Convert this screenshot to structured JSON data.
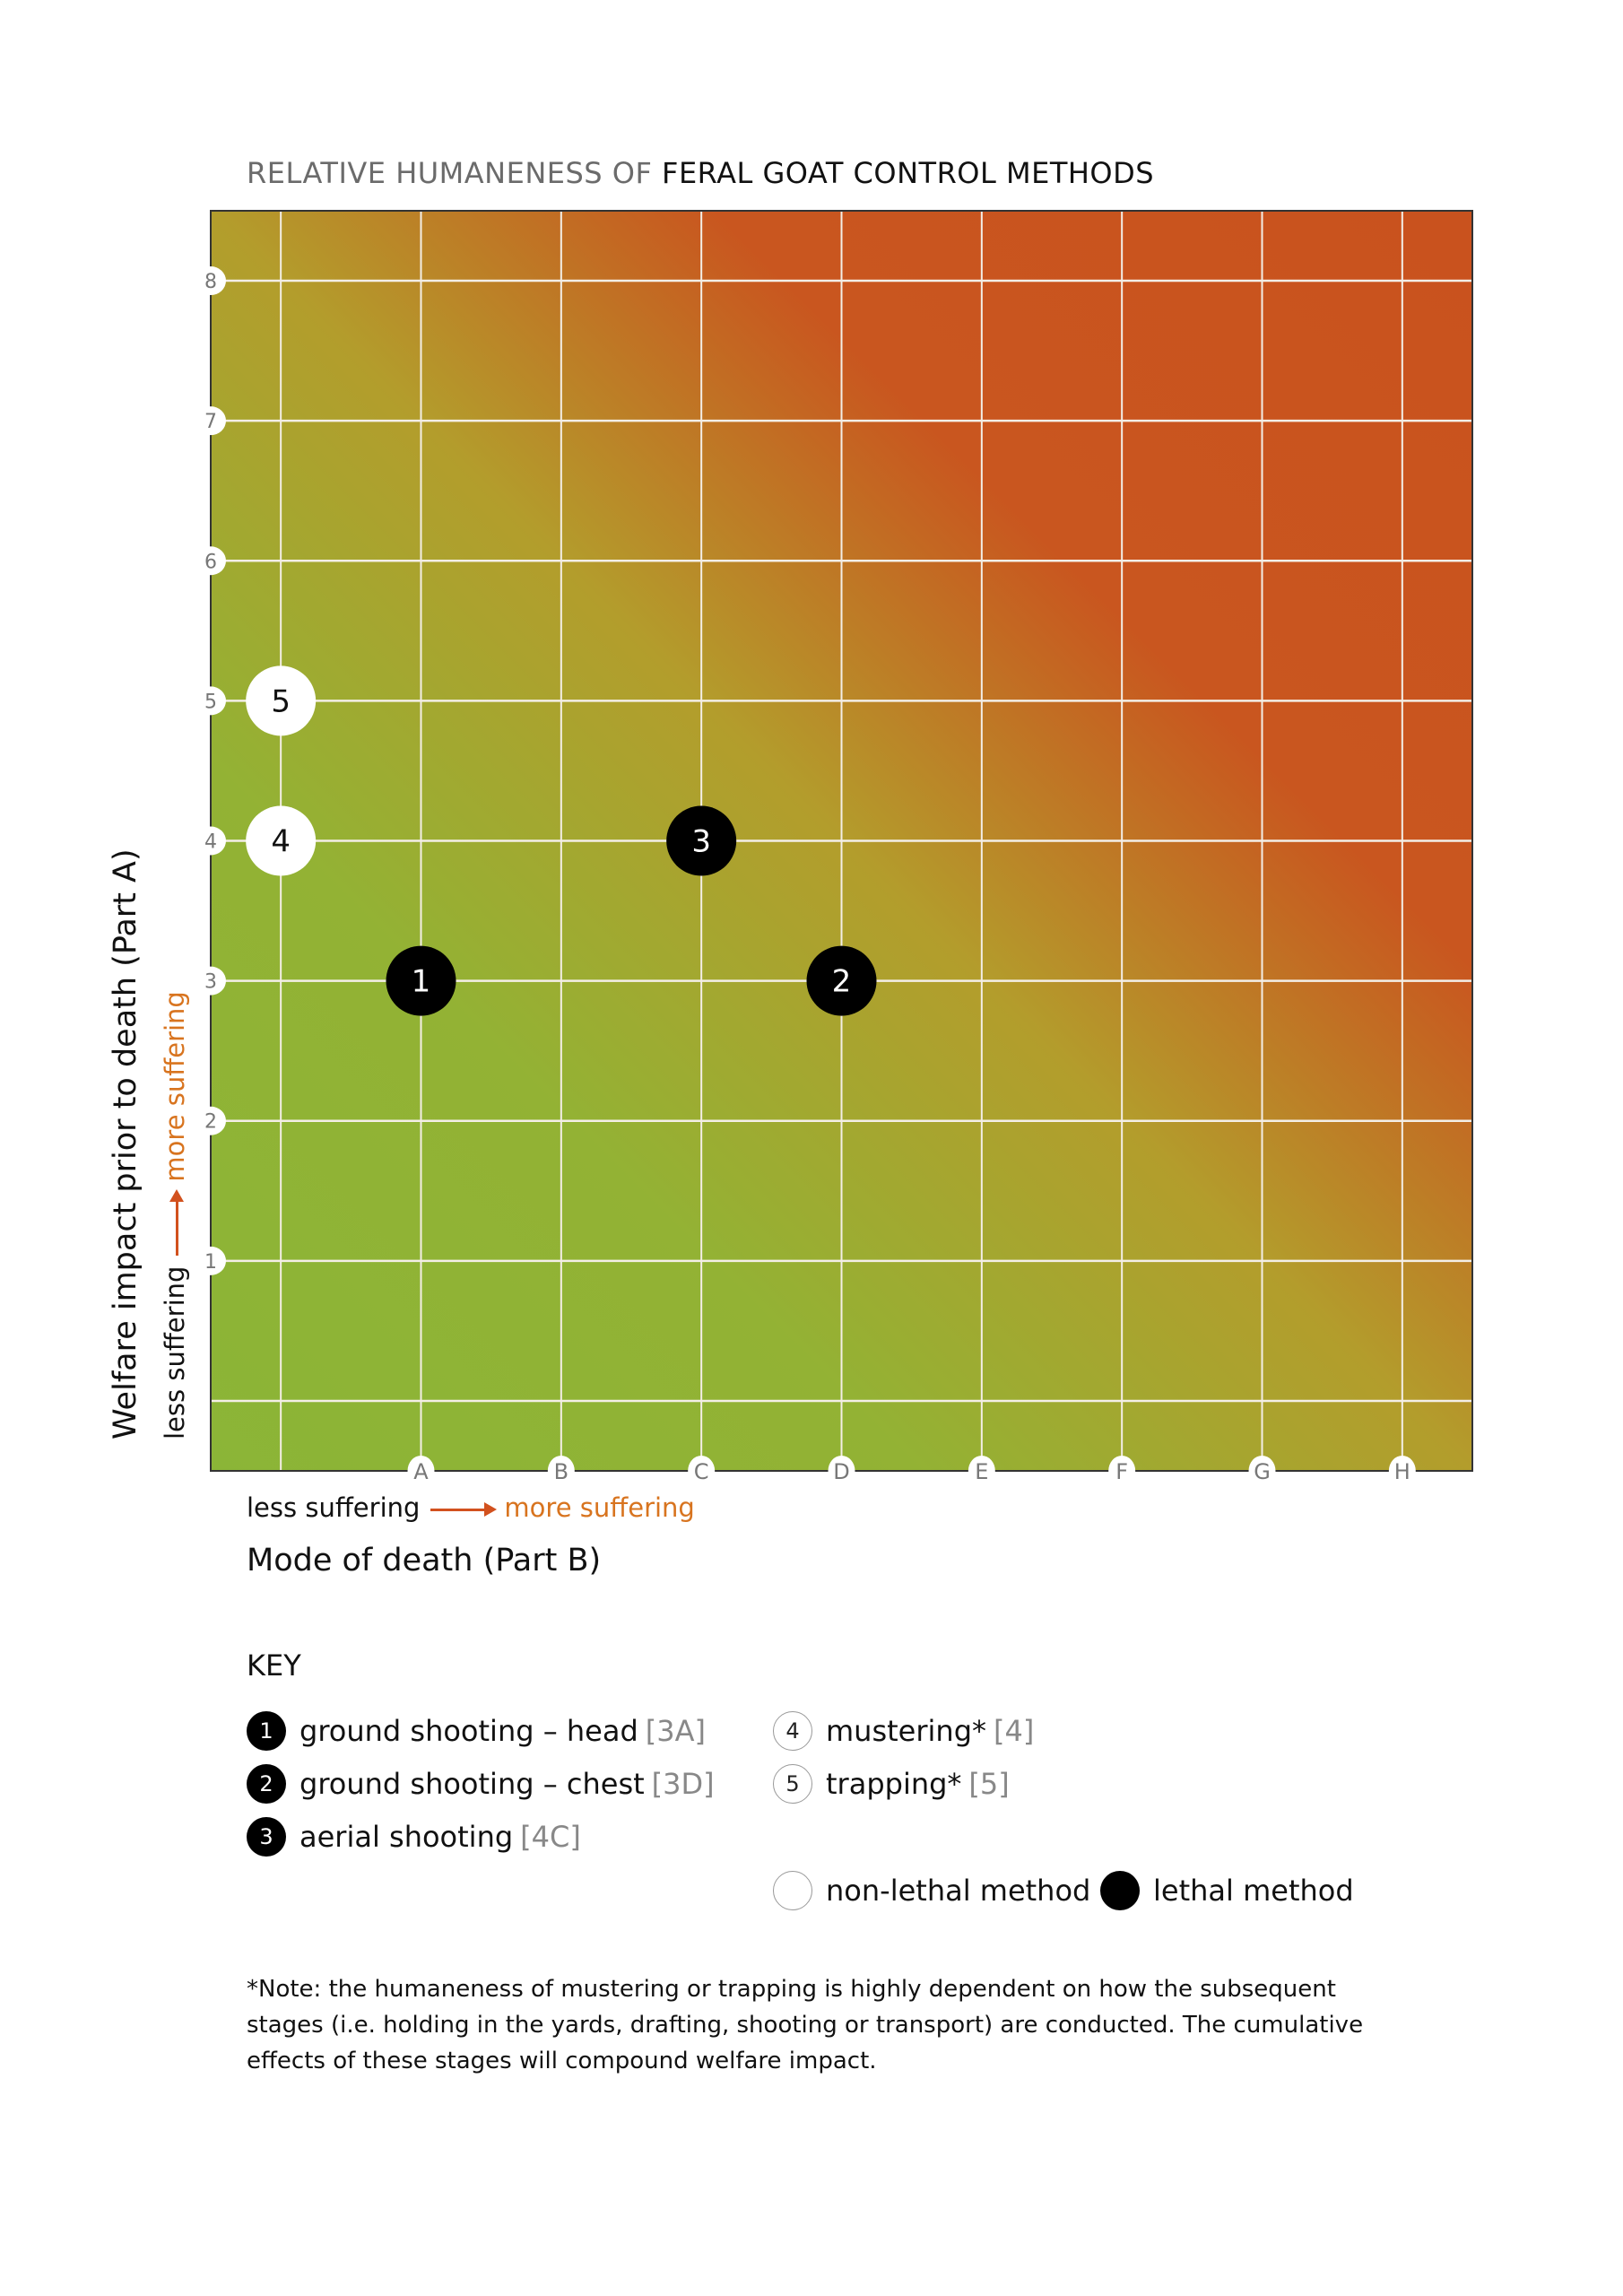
{
  "chart_data": {
    "type": "scatter",
    "title_prefix": "RELATIVE HUMANENESS OF ",
    "title_emphasis": "FERAL GOAT CONTROL METHODS",
    "xlabel": "Mode of death (Part B)",
    "ylabel": "Welfare impact prior to death (Part A)",
    "x_scale_labels": {
      "less": "less suffering",
      "more": "more suffering"
    },
    "y_scale_labels": {
      "less": "less suffering",
      "more": "more suffering"
    },
    "x_ticks": [
      "",
      "A",
      "B",
      "C",
      "D",
      "E",
      "F",
      "G",
      "H"
    ],
    "y_ticks": [
      0,
      1,
      2,
      3,
      4,
      5,
      6,
      7,
      8
    ],
    "y_tick_labels": [
      "",
      "1",
      "2",
      "3",
      "4",
      "5",
      "6",
      "7",
      "8"
    ],
    "xlim": [
      -0.5,
      8.5
    ],
    "ylim": [
      -0.5,
      8.5
    ],
    "grid": true,
    "background": "diagonal gradient green (bottom-left) to orange-red (top-right)",
    "colors": {
      "green": "#8bb537",
      "yellow": "#b3a02c",
      "red": "#c9521e",
      "grid": "#f3eee6",
      "lethal": "#000000",
      "non_lethal": "#ffffff",
      "accent": "#d8741f"
    },
    "points": [
      {
        "label": "1",
        "x": "A",
        "y": 3,
        "lethal": true
      },
      {
        "label": "2",
        "x": "D",
        "y": 3,
        "lethal": true
      },
      {
        "label": "3",
        "x": "C",
        "y": 4,
        "lethal": true
      },
      {
        "label": "4",
        "x": "",
        "y": 4,
        "lethal": false
      },
      {
        "label": "5",
        "x": "",
        "y": 5,
        "lethal": false
      }
    ]
  },
  "key": {
    "title": "KEY",
    "items": [
      {
        "num": "1",
        "text": "ground shooting – head",
        "code": "[3A]",
        "lethal": true
      },
      {
        "num": "2",
        "text": "ground shooting – chest",
        "code": "[3D]",
        "lethal": true
      },
      {
        "num": "3",
        "text": "aerial shooting",
        "code": "[4C]",
        "lethal": true
      },
      {
        "num": "4",
        "text": "mustering*",
        "code": "[4]",
        "lethal": false
      },
      {
        "num": "5",
        "text": "trapping*",
        "code": "[5]",
        "lethal": false
      }
    ],
    "legend": {
      "non_lethal": "non-lethal method",
      "lethal": "lethal method"
    }
  },
  "note": "*Note: the humaneness of mustering or trapping is highly dependent on how the subsequent stages (i.e. holding in the yards, drafting, shooting or transport) are conducted. The cumulative effects of these stages will compound welfare impact."
}
